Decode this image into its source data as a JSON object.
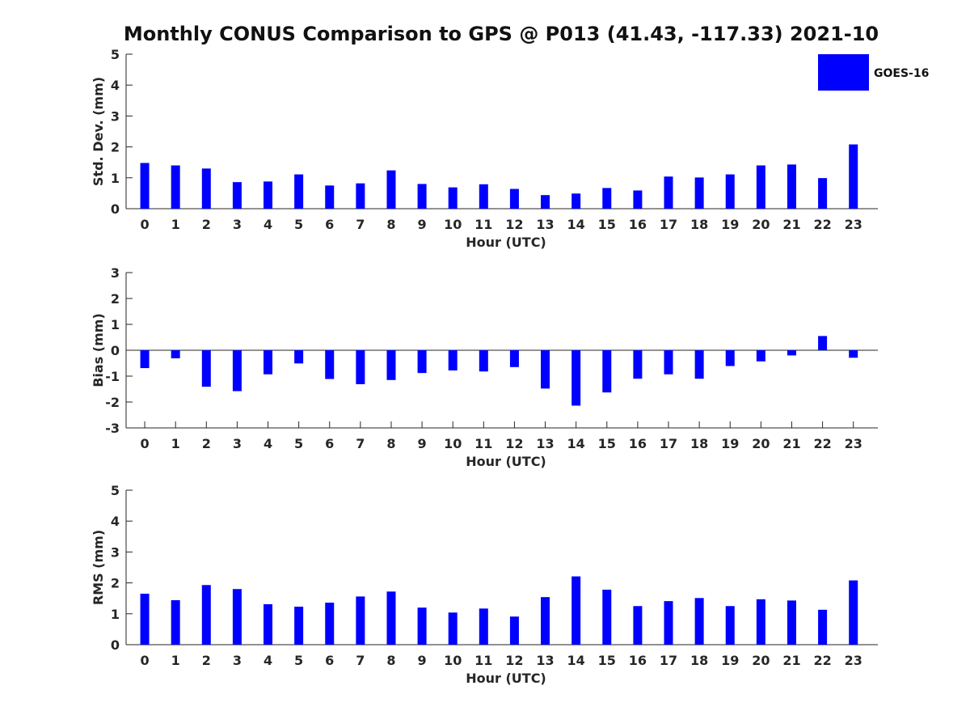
{
  "title": "Monthly CONUS Comparison to GPS @ P013 (41.43, -117.33) 2021-10",
  "bar_color": "#0000ff",
  "legend": {
    "label": "GOES-16",
    "placement": "top-right"
  },
  "chart_data": [
    {
      "type": "bar",
      "name": "std-dev",
      "xlabel": "Hour (UTC)",
      "ylabel": "Std. Dev. (mm)",
      "ylim": [
        0,
        5
      ],
      "yticks": [
        0,
        1,
        2,
        3,
        4,
        5
      ],
      "categories": [
        "0",
        "1",
        "2",
        "3",
        "4",
        "5",
        "6",
        "7",
        "8",
        "9",
        "10",
        "11",
        "12",
        "13",
        "14",
        "15",
        "16",
        "17",
        "18",
        "19",
        "20",
        "21",
        "22",
        "23"
      ],
      "series": [
        {
          "name": "GOES-16",
          "values": [
            1.48,
            1.4,
            1.3,
            0.86,
            0.88,
            1.11,
            0.75,
            0.82,
            1.24,
            0.8,
            0.69,
            0.79,
            0.64,
            0.44,
            0.49,
            0.67,
            0.59,
            1.04,
            1.01,
            1.11,
            1.4,
            1.43,
            0.99,
            2.08
          ]
        }
      ]
    },
    {
      "type": "bar",
      "name": "bias",
      "xlabel": "Hour (UTC)",
      "ylabel": "Bias (mm)",
      "ylim": [
        -3,
        3
      ],
      "yticks": [
        -3,
        -2,
        -1,
        0,
        1,
        2,
        3
      ],
      "categories": [
        "0",
        "1",
        "2",
        "3",
        "4",
        "5",
        "6",
        "7",
        "8",
        "9",
        "10",
        "11",
        "12",
        "13",
        "14",
        "15",
        "16",
        "17",
        "18",
        "19",
        "20",
        "21",
        "22",
        "23"
      ],
      "series": [
        {
          "name": "GOES-16",
          "values": [
            -0.69,
            -0.31,
            -1.41,
            -1.58,
            -0.93,
            -0.51,
            -1.11,
            -1.31,
            -1.15,
            -0.88,
            -0.78,
            -0.82,
            -0.65,
            -1.48,
            -2.14,
            -1.63,
            -1.1,
            -0.93,
            -1.1,
            -0.61,
            -0.43,
            -0.2,
            0.55,
            -0.29
          ]
        }
      ]
    },
    {
      "type": "bar",
      "name": "rms",
      "xlabel": "Hour (UTC)",
      "ylabel": "RMS (mm)",
      "ylim": [
        0,
        5
      ],
      "yticks": [
        0,
        1,
        2,
        3,
        4,
        5
      ],
      "categories": [
        "0",
        "1",
        "2",
        "3",
        "4",
        "5",
        "6",
        "7",
        "8",
        "9",
        "10",
        "11",
        "12",
        "13",
        "14",
        "15",
        "16",
        "17",
        "18",
        "19",
        "20",
        "21",
        "22",
        "23"
      ],
      "series": [
        {
          "name": "GOES-16",
          "values": [
            1.65,
            1.44,
            1.93,
            1.8,
            1.31,
            1.23,
            1.36,
            1.56,
            1.72,
            1.2,
            1.04,
            1.17,
            0.91,
            1.54,
            2.21,
            1.78,
            1.25,
            1.41,
            1.51,
            1.25,
            1.47,
            1.43,
            1.13,
            2.08
          ]
        }
      ]
    }
  ]
}
